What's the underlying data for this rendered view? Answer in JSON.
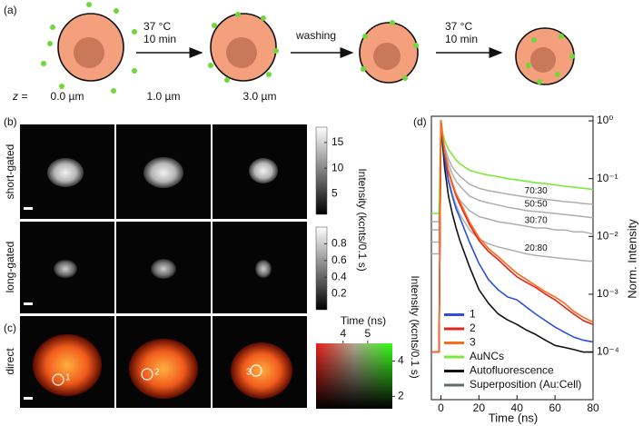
{
  "panels": {
    "a": {
      "label": "(a)",
      "steps": [
        {
          "line1": "37 °C",
          "line2": "10 min"
        },
        {
          "line1": "washing"
        },
        {
          "line1": "37 °C",
          "line2": "10 min"
        }
      ]
    },
    "b": {
      "label": "(b)",
      "z_label": "z =",
      "columns": [
        "0.0 µm",
        "1.0 µm",
        "3.0 µm"
      ],
      "rows": [
        "short-gated",
        "long-gated"
      ],
      "colorbars": [
        {
          "ylim": [
            1,
            18
          ],
          "ticks": [
            15,
            10,
            5
          ]
        },
        {
          "ylim": [
            0.01,
            1.0
          ],
          "ticks": [
            0.8,
            0.6,
            0.4,
            0.2
          ]
        }
      ],
      "colorbar_label": "Intensity (kcnts/0.1 s)"
    },
    "c": {
      "label": "(c)",
      "row": "direct",
      "spots": [
        "1",
        "2",
        "3"
      ],
      "colormap": {
        "x_label": "Time (ns)",
        "xlim": [
          2.9,
          6
        ],
        "x_ticks": [
          4,
          5
        ],
        "ylim": [
          1.3,
          5
        ],
        "y_ticks": [
          4,
          2
        ],
        "y_label": "Intensity (kcnts/0.1 s)"
      }
    },
    "d": {
      "label": "(d)"
    }
  },
  "chart_data": {
    "type": "line",
    "x_label": "Time (ns)",
    "y_label": "Norm. Intensity",
    "log_y": true,
    "legend": "lower left",
    "xlim": [
      -5,
      80
    ],
    "xticks": [
      0,
      20,
      40,
      60,
      80
    ],
    "ylim": [
      1.5e-05,
      1.2
    ],
    "yticks": [
      {
        "value": 1,
        "label": "10⁰"
      },
      {
        "value": 0.1,
        "label": "10⁻¹"
      },
      {
        "value": 0.01,
        "label": "10⁻²"
      },
      {
        "value": 0.001,
        "label": "10⁻³"
      },
      {
        "value": 0.0001,
        "label": "10⁻⁴"
      }
    ],
    "x": [
      -5,
      -1,
      0,
      1,
      2,
      4,
      6,
      8,
      10,
      15,
      20,
      25,
      30,
      35,
      40,
      45,
      50,
      55,
      60,
      65,
      70,
      75,
      80
    ],
    "superposition": {
      "name": "Superposition (Au:Cell)",
      "color": "#aab0aa",
      "legend_color": "#5f6b66",
      "curves": [
        {
          "label": "70:30",
          "values": [
            0.018,
            0.018,
            1,
            0.5,
            0.35,
            0.22,
            0.16,
            0.13,
            0.11,
            0.08,
            0.068,
            0.062,
            0.058,
            0.054,
            0.051,
            0.048,
            0.046,
            0.044,
            0.042,
            0.04,
            0.039,
            0.037,
            0.036
          ]
        },
        {
          "label": "50:50",
          "values": [
            0.013,
            0.013,
            1,
            0.48,
            0.3,
            0.18,
            0.12,
            0.09,
            0.075,
            0.05,
            0.042,
            0.038,
            0.035,
            0.032,
            0.03,
            0.028,
            0.027,
            0.026,
            0.025,
            0.024,
            0.023,
            0.022,
            0.021
          ]
        },
        {
          "label": "30:70",
          "values": [
            0.008,
            0.008,
            1,
            0.45,
            0.26,
            0.13,
            0.08,
            0.055,
            0.042,
            0.028,
            0.022,
            0.02,
            0.018,
            0.017,
            0.016,
            0.015,
            0.014,
            0.014,
            0.013,
            0.013,
            0.012,
            0.012,
            0.011
          ]
        },
        {
          "label": "20:80",
          "values": [
            0.005,
            0.005,
            1,
            0.42,
            0.22,
            0.1,
            0.055,
            0.035,
            0.024,
            0.013,
            0.009,
            0.0075,
            0.0066,
            0.006,
            0.0055,
            0.005,
            0.0047,
            0.0045,
            0.0043,
            0.0041,
            0.004,
            0.0038,
            0.0037
          ]
        }
      ]
    },
    "series": [
      {
        "name": "1",
        "color": "#2a4fe0",
        "values": [
          0.0001,
          0.0001,
          1,
          0.45,
          0.22,
          0.09,
          0.05,
          0.03,
          0.021,
          0.008,
          0.0034,
          0.0018,
          0.0012,
          0.0009,
          0.0008,
          0.0006,
          0.00045,
          0.00035,
          0.00027,
          0.00022,
          0.00018,
          0.00016,
          0.00015
        ]
      },
      {
        "name": "2",
        "color": "#e8211c",
        "values": [
          0.0001,
          0.0001,
          1,
          0.5,
          0.28,
          0.13,
          0.08,
          0.05,
          0.036,
          0.016,
          0.0085,
          0.0055,
          0.004,
          0.0028,
          0.002,
          0.0016,
          0.0013,
          0.001,
          0.0008,
          0.0006,
          0.00045,
          0.00035,
          0.0003
        ]
      },
      {
        "name": "3",
        "color": "#ff6a1a",
        "values": [
          0.0001,
          0.0001,
          1,
          0.52,
          0.3,
          0.14,
          0.085,
          0.055,
          0.04,
          0.018,
          0.0095,
          0.0062,
          0.0045,
          0.0032,
          0.0023,
          0.0018,
          0.0014,
          0.0011,
          0.0009,
          0.0007,
          0.0005,
          0.0004,
          0.00033
        ]
      },
      {
        "name": "AuNCs",
        "color": "#7ee83a",
        "values": [
          0.025,
          0.025,
          1,
          0.6,
          0.45,
          0.32,
          0.26,
          0.21,
          0.18,
          0.14,
          0.125,
          0.115,
          0.108,
          0.1,
          0.095,
          0.09,
          0.085,
          0.082,
          0.078,
          0.074,
          0.071,
          0.068,
          0.065
        ]
      },
      {
        "name": "Autofluorescence",
        "color": "#111111",
        "values": [
          0.0001,
          0.0001,
          1,
          0.35,
          0.15,
          0.05,
          0.025,
          0.014,
          0.0085,
          0.003,
          0.0012,
          0.0007,
          0.00046,
          0.00036,
          0.0003,
          0.00024,
          0.0002,
          0.00016,
          0.00013,
          0.00012,
          0.00011,
          0.0001,
          0.0001
        ]
      }
    ]
  }
}
